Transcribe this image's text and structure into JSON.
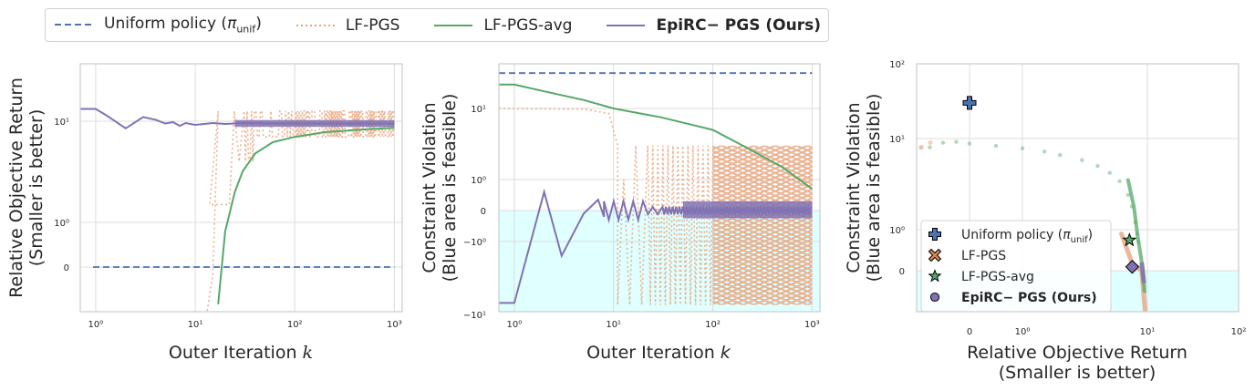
{
  "legend": {
    "items": [
      {
        "label": "Uniform policy (",
        "sym": "π",
        "sub": "unif",
        "tail": ")",
        "style": "dashed",
        "color": "#4c72b0"
      },
      {
        "label": "LF-PGS",
        "style": "dotted",
        "color": "#e8a47e"
      },
      {
        "label": "LF-PGS-avg",
        "style": "solid",
        "color": "#55a868"
      },
      {
        "label": "EpiRC− PGS (Ours)",
        "style": "solid",
        "color": "#8172b3",
        "bold": true
      }
    ]
  },
  "colors": {
    "uniform": "#4c72b0",
    "lf": "#e8a47e",
    "avg": "#55a868",
    "ours": "#8172b3",
    "feasible": "#e0ffff"
  },
  "chart_data": [
    {
      "type": "line",
      "xlabel": "Outer Iteration k",
      "ylabel": [
        "Relative Objective Return",
        "(Smaller is better)"
      ],
      "xscale": "log",
      "yscale": "symlog",
      "xticks": [
        "10⁰",
        "10¹",
        "10²",
        "10³"
      ],
      "yticks": [
        "0",
        "10⁰",
        "10¹"
      ],
      "xlim": [
        0.7,
        1200
      ],
      "series": [
        {
          "name": "Uniform policy (π_unif)",
          "x": [
            0.7,
            1000
          ],
          "y": [
            0,
            0
          ]
        },
        {
          "name": "LF-PGS",
          "note_values": "oscillates between about 7 and 14 after k≈15",
          "x": [
            14,
            16,
            18,
            20,
            25,
            30,
            50,
            100,
            1000
          ],
          "y": [
            -1,
            10,
            14,
            8,
            12,
            7.5,
            13,
            7,
            7
          ]
        },
        {
          "name": "LF-PGS-avg",
          "x": [
            17,
            18,
            20,
            25,
            30,
            40,
            60,
            100,
            200,
            500,
            1000
          ],
          "y": [
            -1,
            -0.3,
            0.8,
            2,
            3.2,
            4.8,
            6.2,
            7,
            7.8,
            8.3,
            8.6
          ]
        },
        {
          "name": "EpiRC− PGS (Ours)",
          "x": [
            0.7,
            1,
            1.5,
            2,
            3,
            4,
            6,
            10,
            30,
            100,
            1000
          ],
          "y": [
            15,
            15,
            12,
            8.5,
            12,
            10,
            9,
            9.5,
            9.5,
            9.5,
            9.5
          ]
        }
      ]
    },
    {
      "type": "line",
      "xlabel": "Outer Iteration k",
      "ylabel": [
        "Constraint Violation",
        "(Blue area is feasible)"
      ],
      "xscale": "log",
      "yscale": "symlog",
      "xticks": [
        "10⁰",
        "10¹",
        "10²",
        "10³"
      ],
      "yticks": [
        "10¹",
        "10⁰",
        "0",
        "−10⁰",
        "−10¹"
      ],
      "xlim": [
        0.7,
        1200
      ],
      "series": [
        {
          "name": "Uniform policy (π_unif)",
          "x": [
            0.7,
            1000
          ],
          "y": [
            30,
            30
          ]
        },
        {
          "name": "LF-PGS",
          "x": [
            0.7,
            5,
            8,
            10,
            12,
            15,
            30,
            100,
            1000
          ],
          "y": [
            10,
            10,
            9.5,
            8,
            2,
            -8,
            2.8,
            -8,
            2.8
          ]
        },
        {
          "name": "LF-PGS-avg",
          "x": [
            0.7,
            1,
            2,
            5,
            10,
            30,
            100,
            200,
            500,
            1000
          ],
          "y": [
            21,
            21,
            17,
            13,
            10,
            7.5,
            5,
            3,
            1.5,
            0.7
          ]
        },
        {
          "name": "EpiRC− PGS (Ours)",
          "x": [
            0.7,
            1,
            2,
            3,
            5,
            7,
            10,
            30,
            100,
            1000
          ],
          "y": [
            -7.5,
            -7.5,
            0.6,
            -1.6,
            -0.2,
            0.3,
            -0.2,
            0.1,
            0.05,
            0.05
          ]
        }
      ]
    },
    {
      "type": "scatter",
      "xlabel": [
        "Relative Objective Return",
        "(Smaller is better)"
      ],
      "ylabel": [
        "Constraint Violation",
        "(Blue area is feasible)"
      ],
      "xscale": "symlog",
      "yscale": "symlog",
      "xticks": [
        "0",
        "10⁰",
        "10¹",
        "10²"
      ],
      "yticks": [
        "10²",
        "10¹",
        "10⁰",
        "0"
      ],
      "series": [
        {
          "name": "Uniform policy (π_unif)",
          "marker": "plus",
          "x": [
            0
          ],
          "y": [
            30
          ]
        },
        {
          "name": "LF-PGS",
          "marker": "x",
          "x": [
            8.8
          ],
          "y": [
            0.05
          ]
        },
        {
          "name": "LF-PGS-avg",
          "marker": "star",
          "x": [
            8.5
          ],
          "y": [
            0.7
          ]
        },
        {
          "name": "EpiRC− PGS (Ours)",
          "marker": "circle",
          "x": [
            9.5
          ],
          "y": [
            0.05
          ]
        }
      ],
      "legend_items": [
        "Uniform policy (π_unif)",
        "LF-PGS",
        "LF-PGS-avg",
        "EpiRC− PGS (Ours)"
      ],
      "legend_placement": "lower-left"
    }
  ]
}
